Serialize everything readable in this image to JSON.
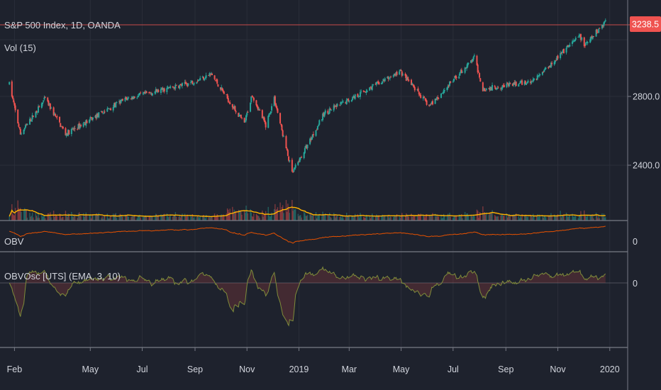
{
  "header": {
    "symbol_title": "S&P 500 Index, 1D, OANDA",
    "volume_label": "Vol (15)"
  },
  "panes": {
    "obv_label": "OBV",
    "obvosc_label": "OBVOsc [UTS] (EMA, 3, 10)"
  },
  "price_badge": {
    "value": "3238.5",
    "color": "#ef5350"
  },
  "colors": {
    "background": "#1e222d",
    "grid": "#2a2e39",
    "up": "#26a69a",
    "down": "#ef5350",
    "volume_ma": "#ffb300",
    "obv_line": "#e65100",
    "osc_line": "#7f8c3a",
    "separator": "#787b86"
  },
  "chart_data": [
    {
      "type": "candlestick",
      "title": "S&P 500 Index, 1D, OANDA",
      "x_ticks": [
        "Feb",
        "May",
        "Jul",
        "Sep",
        "Nov",
        "2019",
        "Mar",
        "May",
        "Jul",
        "Sep",
        "Nov",
        "2020"
      ],
      "y_ticks": [
        2400.0,
        2800.0
      ],
      "y_tick_labels": [
        "2400.0",
        "2800.0"
      ],
      "ylim": [
        2200,
        3300
      ],
      "last_price": 3238.5,
      "key_points": [
        {
          "date": "2018-01-26",
          "close": 2872
        },
        {
          "date": "2018-02-08",
          "close": 2581
        },
        {
          "date": "2018-03-09",
          "close": 2786
        },
        {
          "date": "2018-04-02",
          "close": 2582
        },
        {
          "date": "2018-06-12",
          "close": 2786
        },
        {
          "date": "2018-08-24",
          "close": 2875
        },
        {
          "date": "2018-09-20",
          "close": 2930
        },
        {
          "date": "2018-10-29",
          "close": 2641
        },
        {
          "date": "2018-11-07",
          "close": 2813
        },
        {
          "date": "2018-11-23",
          "close": 2632
        },
        {
          "date": "2018-12-03",
          "close": 2790
        },
        {
          "date": "2018-12-24",
          "close": 2351
        },
        {
          "date": "2019-01-31",
          "close": 2704
        },
        {
          "date": "2019-04-30",
          "close": 2945
        },
        {
          "date": "2019-06-03",
          "close": 2744
        },
        {
          "date": "2019-07-26",
          "close": 3025
        },
        {
          "date": "2019-08-05",
          "close": 2844
        },
        {
          "date": "2019-10-02",
          "close": 2887
        },
        {
          "date": "2019-11-27",
          "close": 3153
        },
        {
          "date": "2019-12-03",
          "close": 3093
        },
        {
          "date": "2019-12-27",
          "close": 3240
        }
      ]
    },
    {
      "type": "bar",
      "title": "Vol (15)",
      "series": [
        {
          "name": "Vol (15)",
          "values": []
        }
      ]
    },
    {
      "type": "line",
      "title": "OBV",
      "y_ticks": [
        0
      ],
      "y_tick_labels": [
        "0"
      ]
    },
    {
      "type": "line",
      "title": "OBVOsc [UTS] (EMA, 3, 10)",
      "y_ticks": [
        0
      ],
      "y_tick_labels": [
        "0"
      ]
    }
  ]
}
